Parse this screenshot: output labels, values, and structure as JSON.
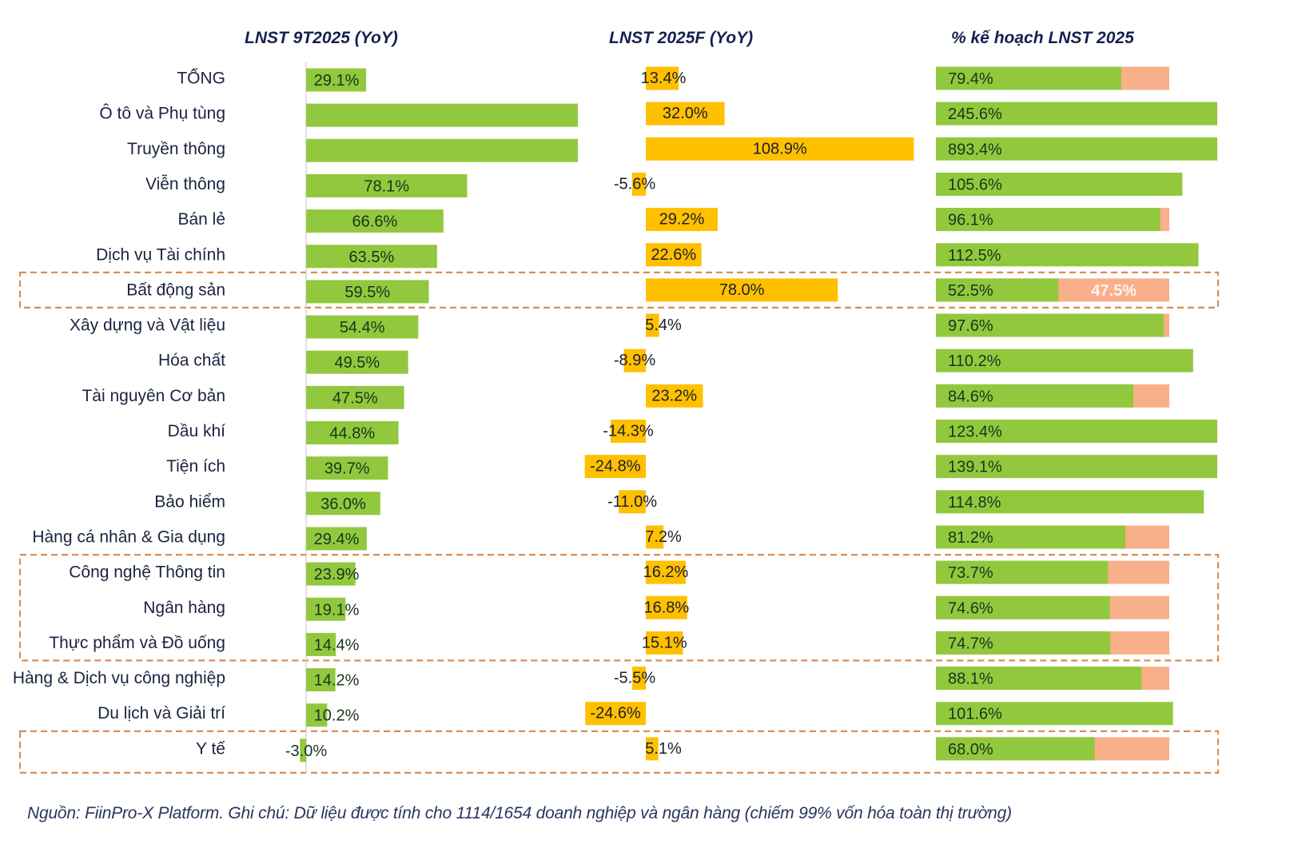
{
  "chart_data": {
    "type": "bar",
    "subtype": "multi-panel horizontal bar",
    "categories": [
      "TỔNG",
      "Ô tô và Phụ tùng",
      "Truyền thông",
      "Viễn thông",
      "Bán lẻ",
      "Dịch vụ Tài chính",
      "Bất động sản",
      "Xây dựng và Vật liệu",
      "Hóa chất",
      "Tài nguyên Cơ bản",
      "Dầu khí",
      "Tiện ích",
      "Bảo hiểm",
      "Hàng cá nhân & Gia dụng",
      "Công nghệ Thông tin",
      "Ngân hàng",
      "Thực phẩm và Đồ uống",
      "Hàng & Dịch vụ công nghiệp",
      "Du lịch và Giải trí",
      "Y tế"
    ],
    "panels": [
      {
        "title": "LNST 9T2025 (YoY)",
        "color": "#92c83e",
        "values": [
          29.1,
          null,
          null,
          78.1,
          66.6,
          63.5,
          59.5,
          54.4,
          49.5,
          47.5,
          44.8,
          39.7,
          36.0,
          29.4,
          23.9,
          19.1,
          14.4,
          14.2,
          10.2,
          -3.0
        ],
        "labels": [
          "29.1%",
          "",
          "",
          "78.1%",
          "66.6%",
          "63.5%",
          "59.5%",
          "54.4%",
          "49.5%",
          "47.5%",
          "44.8%",
          "39.7%",
          "36.0%",
          "29.4%",
          "23.9%",
          "19.1%",
          "14.4%",
          "14.2%",
          "10.2%",
          "-3.0%"
        ],
        "clipped": [
          false,
          true,
          true,
          false,
          false,
          false,
          false,
          false,
          false,
          false,
          false,
          false,
          false,
          false,
          false,
          false,
          false,
          false,
          false,
          false
        ],
        "xlim": [
          -5,
          132
        ]
      },
      {
        "title": "LNST 2025F (YoY)",
        "color": "#ffc000",
        "values": [
          13.4,
          32.0,
          108.9,
          -5.6,
          29.2,
          22.6,
          78.0,
          5.4,
          -8.9,
          23.2,
          -14.3,
          -24.8,
          -11.0,
          7.2,
          16.2,
          16.8,
          15.1,
          -5.5,
          -24.6,
          5.1
        ],
        "labels": [
          "13.4%",
          "32.0%",
          "108.9%",
          "-5.6%",
          "29.2%",
          "22.6%",
          "78.0%",
          "5.4%",
          "-8.9%",
          "23.2%",
          "-14.3%",
          "-24.8%",
          "-11.0%",
          "7.2%",
          "16.2%",
          "16.8%",
          "15.1%",
          "-5.5%",
          "-24.6%",
          "5.1%"
        ],
        "xlim": [
          -25,
          110
        ]
      },
      {
        "title": "% kế hoạch LNST 2025",
        "color": "#92c83e",
        "remainder_color": "#f8b08a",
        "values": [
          79.4,
          245.6,
          893.4,
          105.6,
          96.1,
          112.5,
          52.5,
          97.6,
          110.2,
          84.6,
          123.4,
          139.1,
          114.8,
          81.2,
          73.7,
          74.6,
          74.7,
          88.1,
          101.6,
          68.0
        ],
        "labels": [
          "79.4%",
          "245.6%",
          "893.4%",
          "105.6%",
          "96.1%",
          "112.5%",
          "52.5%",
          "97.6%",
          "110.2%",
          "84.6%",
          "123.4%",
          "139.1%",
          "114.8%",
          "81.2%",
          "73.7%",
          "74.6%",
          "74.7%",
          "88.1%",
          "101.6%",
          "68.0%"
        ],
        "remainder_label_row": 6,
        "remainder_label": "47.5%",
        "target": 100,
        "xlim": [
          0,
          121
        ]
      }
    ],
    "highlight_groups": [
      {
        "rows": [
          "Bất động sản"
        ]
      },
      {
        "rows": [
          "Công nghệ Thông tin",
          "Ngân hàng",
          "Thực phẩm và Đồ uống"
        ]
      },
      {
        "rows": [
          "Y tế"
        ]
      }
    ],
    "highlight_color": "#d98e54",
    "label_color": "#1b2340",
    "bar_label_color": "#16361a",
    "grid": false,
    "legend": "none"
  },
  "footer": {
    "source_label": "Nguồn:",
    "source_value": " FiinPro-X Platform.",
    "note_label": " Ghi chú:",
    "note_value": " Dữ liệu được tính cho 1114/1654 doanh nghiệp và ngân hàng (chiếm 99% vốn hóa toàn thị trường)"
  }
}
